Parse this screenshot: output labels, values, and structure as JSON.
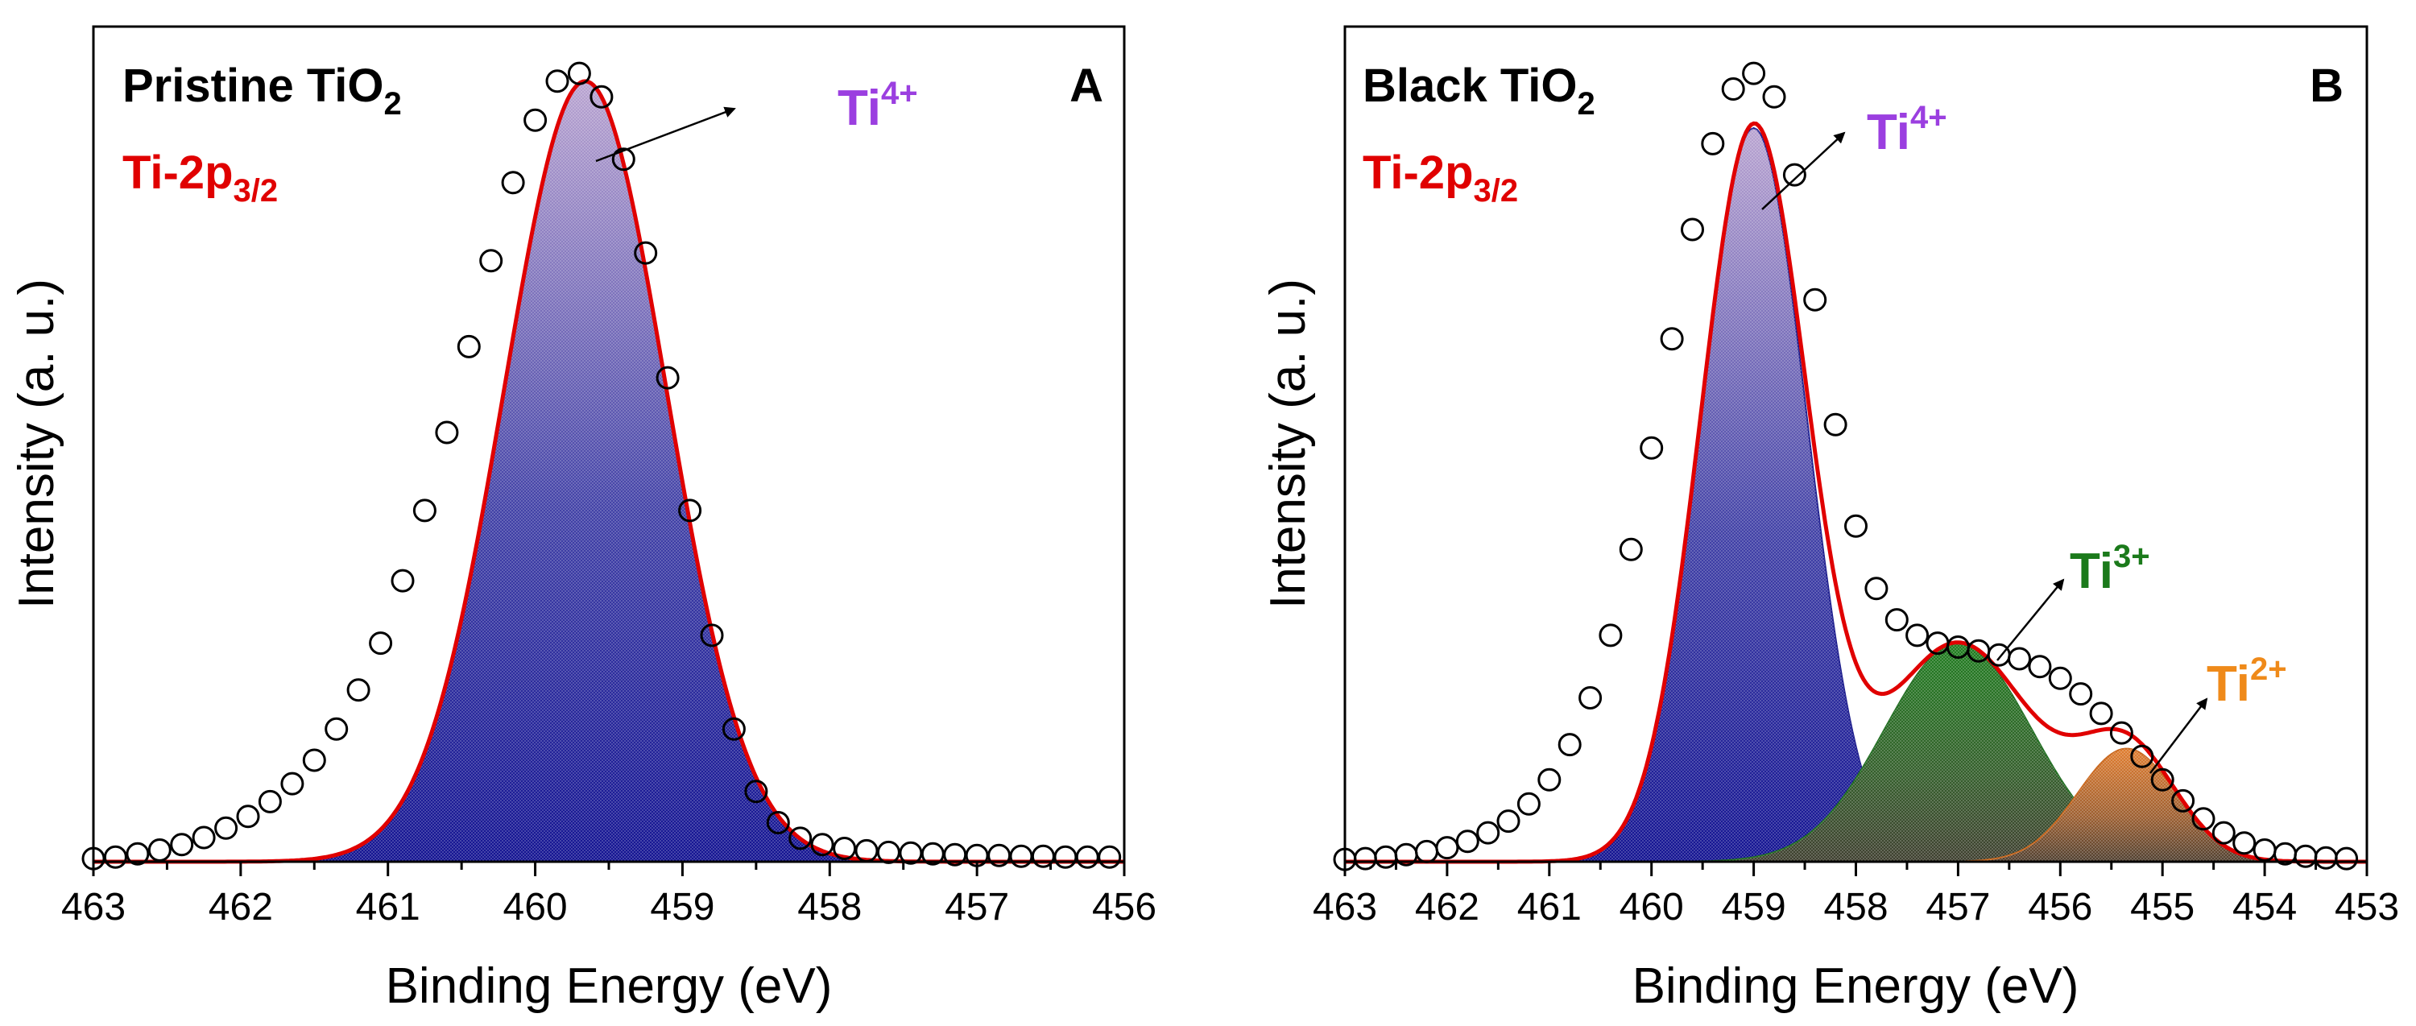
{
  "colors": {
    "envelope": "#e00000",
    "ti4": "#1a1a8c",
    "ti3": "#1e6b1e",
    "ti2": "#c8651a",
    "label_ti4": "#9b3fe0",
    "label_ti3": "#1b7a1b",
    "label_ti2": "#ef8a1a",
    "region_label": "#e00000"
  },
  "chart_data": [
    {
      "type": "area",
      "panel_letter": "A",
      "title_main": "Pristine TiO",
      "title_sub": "2",
      "region_main": "Ti-2p",
      "region_sub": "3/2",
      "xlabel": "Binding Energy (eV)",
      "ylabel": "Intensity (a. u.)",
      "xlim": [
        463,
        456
      ],
      "ylim": [
        0,
        1.07
      ],
      "xticks": [
        "463",
        "462",
        "461",
        "460",
        "459",
        "458",
        "457",
        "456"
      ],
      "peaks": [
        {
          "name": "Ti",
          "sup": "4+",
          "center": 459.66,
          "height": 1.0,
          "sigma": 0.55,
          "color_key": "ti4",
          "label_color_key": "label_ti4"
        }
      ],
      "points": {
        "x": [
          463.0,
          462.85,
          462.7,
          462.55,
          462.4,
          462.25,
          462.1,
          461.95,
          461.8,
          461.65,
          461.5,
          461.35,
          461.2,
          461.05,
          460.9,
          460.75,
          460.6,
          460.45,
          460.3,
          460.15,
          460.0,
          459.85,
          459.7,
          459.55,
          459.4,
          459.25,
          459.1,
          458.95,
          458.8,
          458.65,
          458.5,
          458.35,
          458.2,
          458.05,
          457.9,
          457.75,
          457.6,
          457.45,
          457.3,
          457.15,
          457.0,
          456.85,
          456.7,
          456.55,
          456.4,
          456.25,
          456.1
        ],
        "y": [
          0.004,
          0.006,
          0.01,
          0.015,
          0.022,
          0.031,
          0.043,
          0.058,
          0.077,
          0.1,
          0.13,
          0.17,
          0.22,
          0.28,
          0.36,
          0.45,
          0.55,
          0.66,
          0.77,
          0.87,
          0.95,
          1.0,
          1.01,
          0.98,
          0.9,
          0.78,
          0.62,
          0.45,
          0.29,
          0.17,
          0.09,
          0.05,
          0.03,
          0.022,
          0.017,
          0.014,
          0.012,
          0.011,
          0.01,
          0.009,
          0.008,
          0.008,
          0.007,
          0.007,
          0.006,
          0.006,
          0.006
        ]
      }
    },
    {
      "type": "area",
      "panel_letter": "B",
      "title_main": "Black TiO",
      "title_sub": "2",
      "region_main": "Ti-2p",
      "region_sub": "3/2",
      "xlabel": "Binding Energy (eV)",
      "ylabel": "Intensity (a. u.)",
      "xlim": [
        463,
        453
      ],
      "ylim": [
        0,
        1.07
      ],
      "xticks": [
        "463",
        "462",
        "461",
        "460",
        "459",
        "458",
        "457",
        "456",
        "455",
        "454",
        "453"
      ],
      "peaks": [
        {
          "name": "Ti",
          "sup": "4+",
          "center": 459.0,
          "height": 0.94,
          "sigma": 0.52,
          "color_key": "ti4",
          "label_color_key": "label_ti4"
        },
        {
          "name": "Ti",
          "sup": "3+",
          "center": 457.0,
          "height": 0.28,
          "sigma": 0.72,
          "color_key": "ti3",
          "label_color_key": "label_ti3"
        },
        {
          "name": "Ti",
          "sup": "2+",
          "center": 455.35,
          "height": 0.145,
          "sigma": 0.48,
          "color_key": "ti2",
          "label_color_key": "label_ti2"
        }
      ],
      "points": {
        "x": [
          463.0,
          462.8,
          462.6,
          462.4,
          462.2,
          462.0,
          461.8,
          461.6,
          461.4,
          461.2,
          461.0,
          460.8,
          460.6,
          460.4,
          460.2,
          460.0,
          459.8,
          459.6,
          459.4,
          459.2,
          459.0,
          458.8,
          458.6,
          458.4,
          458.2,
          458.0,
          457.8,
          457.6,
          457.4,
          457.2,
          457.0,
          456.8,
          456.6,
          456.4,
          456.2,
          456.0,
          455.8,
          455.6,
          455.4,
          455.2,
          455.0,
          454.8,
          454.6,
          454.4,
          454.2,
          454.0,
          453.8,
          453.6,
          453.4,
          453.2
        ],
        "y": [
          0.003,
          0.004,
          0.006,
          0.009,
          0.013,
          0.018,
          0.026,
          0.037,
          0.052,
          0.074,
          0.105,
          0.15,
          0.21,
          0.29,
          0.4,
          0.53,
          0.67,
          0.81,
          0.92,
          0.99,
          1.01,
          0.98,
          0.88,
          0.72,
          0.56,
          0.43,
          0.35,
          0.31,
          0.29,
          0.28,
          0.275,
          0.27,
          0.265,
          0.26,
          0.25,
          0.235,
          0.215,
          0.19,
          0.165,
          0.135,
          0.105,
          0.078,
          0.055,
          0.037,
          0.024,
          0.015,
          0.01,
          0.007,
          0.005,
          0.004
        ]
      }
    }
  ]
}
